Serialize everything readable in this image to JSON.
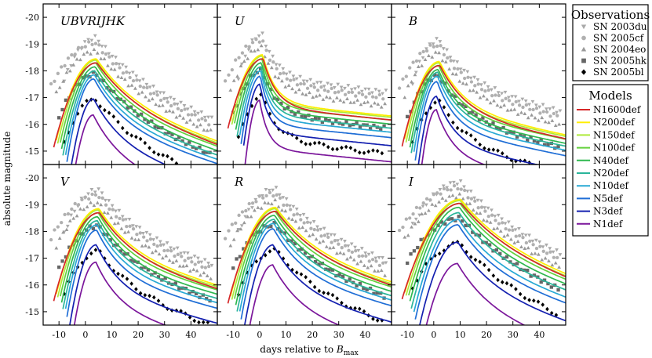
{
  "chart_data": {
    "type": "line",
    "ylabel": "absolute magnitude",
    "xlabel_prefix": "days relative to ",
    "xlabel_main": "B",
    "xlabel_sub": "max",
    "xlim": [
      -16,
      50
    ],
    "ylim": [
      -20.5,
      -14.5
    ],
    "y_inverted": true,
    "xticks": [
      "-10",
      "0",
      "10",
      "20",
      "30",
      "40"
    ],
    "xtick_values": [
      -10,
      0,
      10,
      20,
      30,
      40
    ],
    "yticks": [
      "-20",
      "-19",
      "-18",
      "-17",
      "-16",
      "-15"
    ],
    "ytick_values": [
      -20,
      -19,
      -18,
      -17,
      -16,
      -15
    ],
    "panels": [
      {
        "title": "UBVRIJHK",
        "model_peaks": [
          -18.3,
          -18.45,
          -18.4,
          -18.3,
          -18.15,
          -18.0,
          -17.85,
          -17.7,
          -16.95,
          -16.35
        ],
        "rise": 14,
        "decl": 0.06,
        "tail": 0.03,
        "peak_day": 3
      },
      {
        "title": "U",
        "model_peaks": [
          -18.45,
          -18.6,
          -18.55,
          -18.45,
          -18.3,
          -18.15,
          -18.0,
          -17.8,
          -17.5,
          -16.9
        ],
        "rise": 10,
        "decl": 0.2,
        "tail": 0.01,
        "peak_day": 0
      },
      {
        "title": "B",
        "model_peaks": [
          -18.2,
          -18.35,
          -18.3,
          -18.2,
          -18.05,
          -17.95,
          -17.8,
          -17.6,
          -17.05,
          -16.55
        ],
        "rise": 13,
        "decl": 0.1,
        "tail": 0.02,
        "peak_day": 1
      },
      {
        "title": "V",
        "model_peaks": [
          -18.7,
          -18.85,
          -18.8,
          -18.7,
          -18.55,
          -18.4,
          -18.25,
          -18.05,
          -17.5,
          -16.85
        ],
        "rise": 15,
        "decl": 0.07,
        "tail": 0.025,
        "peak_day": 4
      },
      {
        "title": "R",
        "model_peaks": [
          -18.75,
          -18.9,
          -18.85,
          -18.75,
          -18.6,
          -18.45,
          -18.3,
          -18.1,
          -17.5,
          -16.75
        ],
        "rise": 16,
        "decl": 0.06,
        "tail": 0.025,
        "peak_day": 5
      },
      {
        "title": "I",
        "model_peaks": [
          -19.05,
          -19.2,
          -19.15,
          -19.05,
          -18.9,
          -18.7,
          -18.45,
          -18.25,
          -17.6,
          -16.8
        ],
        "rise": 17,
        "decl": 0.05,
        "tail": 0.03,
        "peak_day": 9
      }
    ],
    "observations_title": "Observations",
    "observations": [
      {
        "name": "SN 2003du",
        "marker": "triangle-down",
        "color": "#aaaaaa",
        "peak": -19.4,
        "start": -8
      },
      {
        "name": "SN 2005cf",
        "marker": "circle",
        "color": "#b0b0b0",
        "peak": -19.2,
        "start": -13
      },
      {
        "name": "SN 2004eo",
        "marker": "triangle-up",
        "color": "#999999",
        "peak": -18.9,
        "start": -11
      },
      {
        "name": "SN 2005hk",
        "marker": "square",
        "color": "#666666",
        "peak": -18.05,
        "start": -10
      },
      {
        "name": "SN 2005bl",
        "marker": "diamond",
        "color": "#000000",
        "peak": -17.1,
        "start": -8
      }
    ],
    "models_title": "Models",
    "models": [
      {
        "name": "N1600def",
        "color": "#d62728"
      },
      {
        "name": "N200def",
        "color": "#ffee00"
      },
      {
        "name": "N150def",
        "color": "#aeea3a"
      },
      {
        "name": "N100def",
        "color": "#63d13c"
      },
      {
        "name": "N40def",
        "color": "#2fb84f"
      },
      {
        "name": "N20def",
        "color": "#2ab59a"
      },
      {
        "name": "N10def",
        "color": "#28a9d4"
      },
      {
        "name": "N5def",
        "color": "#1f6ed6"
      },
      {
        "name": "N3def",
        "color": "#1420b0"
      },
      {
        "name": "N1def",
        "color": "#7b169b"
      }
    ]
  }
}
